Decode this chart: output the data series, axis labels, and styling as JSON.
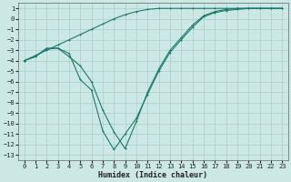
{
  "title": "",
  "xlabel": "Humidex (Indice chaleur)",
  "bg_color": "#cce8e4",
  "line_color": "#1a7a6e",
  "grid_color": "#aacfcb",
  "xlim": [
    -0.5,
    23.5
  ],
  "ylim": [
    -13.5,
    1.5
  ],
  "xticks": [
    0,
    1,
    2,
    3,
    4,
    5,
    6,
    7,
    8,
    9,
    10,
    11,
    12,
    13,
    14,
    15,
    16,
    17,
    18,
    19,
    20,
    21,
    22,
    23
  ],
  "yticks": [
    1,
    0,
    -1,
    -2,
    -3,
    -4,
    -5,
    -6,
    -7,
    -8,
    -9,
    -10,
    -11,
    -12,
    -13
  ],
  "series1_x": [
    0,
    1,
    2,
    3,
    4,
    5,
    6,
    7,
    8,
    9,
    10,
    11,
    12,
    13,
    14,
    15,
    16,
    17,
    18,
    19,
    20,
    21,
    22,
    23
  ],
  "series1_y": [
    -4.0,
    -3.5,
    -3.0,
    -2.5,
    -2.0,
    -1.5,
    -1.0,
    -0.5,
    0.0,
    0.4,
    0.7,
    0.9,
    1.0,
    1.0,
    1.0,
    1.0,
    1.0,
    1.0,
    1.0,
    1.0,
    1.0,
    1.0,
    1.0,
    1.0
  ],
  "series2_x": [
    0,
    1,
    2,
    3,
    4,
    5,
    6,
    7,
    8,
    9,
    10,
    11,
    12,
    13,
    14,
    15,
    16,
    17,
    18,
    19,
    20,
    21,
    22,
    23
  ],
  "series2_y": [
    -4.0,
    -3.6,
    -2.9,
    -2.8,
    -3.3,
    -5.8,
    -6.8,
    -10.7,
    -12.5,
    -11.0,
    -9.5,
    -7.2,
    -5.0,
    -3.2,
    -2.0,
    -0.8,
    0.2,
    0.6,
    0.8,
    0.9,
    1.0,
    1.0,
    1.0,
    1.0
  ],
  "series3_x": [
    0,
    1,
    2,
    3,
    4,
    5,
    6,
    7,
    8,
    9,
    10,
    11,
    12,
    13,
    14,
    15,
    16,
    17,
    18,
    19,
    20,
    21,
    22,
    23
  ],
  "series3_y": [
    -4.0,
    -3.6,
    -2.8,
    -2.8,
    -3.6,
    -4.5,
    -6.0,
    -8.7,
    -10.8,
    -12.4,
    -9.8,
    -7.0,
    -4.8,
    -3.0,
    -1.8,
    -0.6,
    0.3,
    0.7,
    0.9,
    1.0,
    1.0,
    1.0,
    1.0,
    1.0
  ],
  "tick_fontsize": 5.0,
  "xlabel_fontsize": 6.0,
  "linewidth": 0.8,
  "markersize": 2.0
}
